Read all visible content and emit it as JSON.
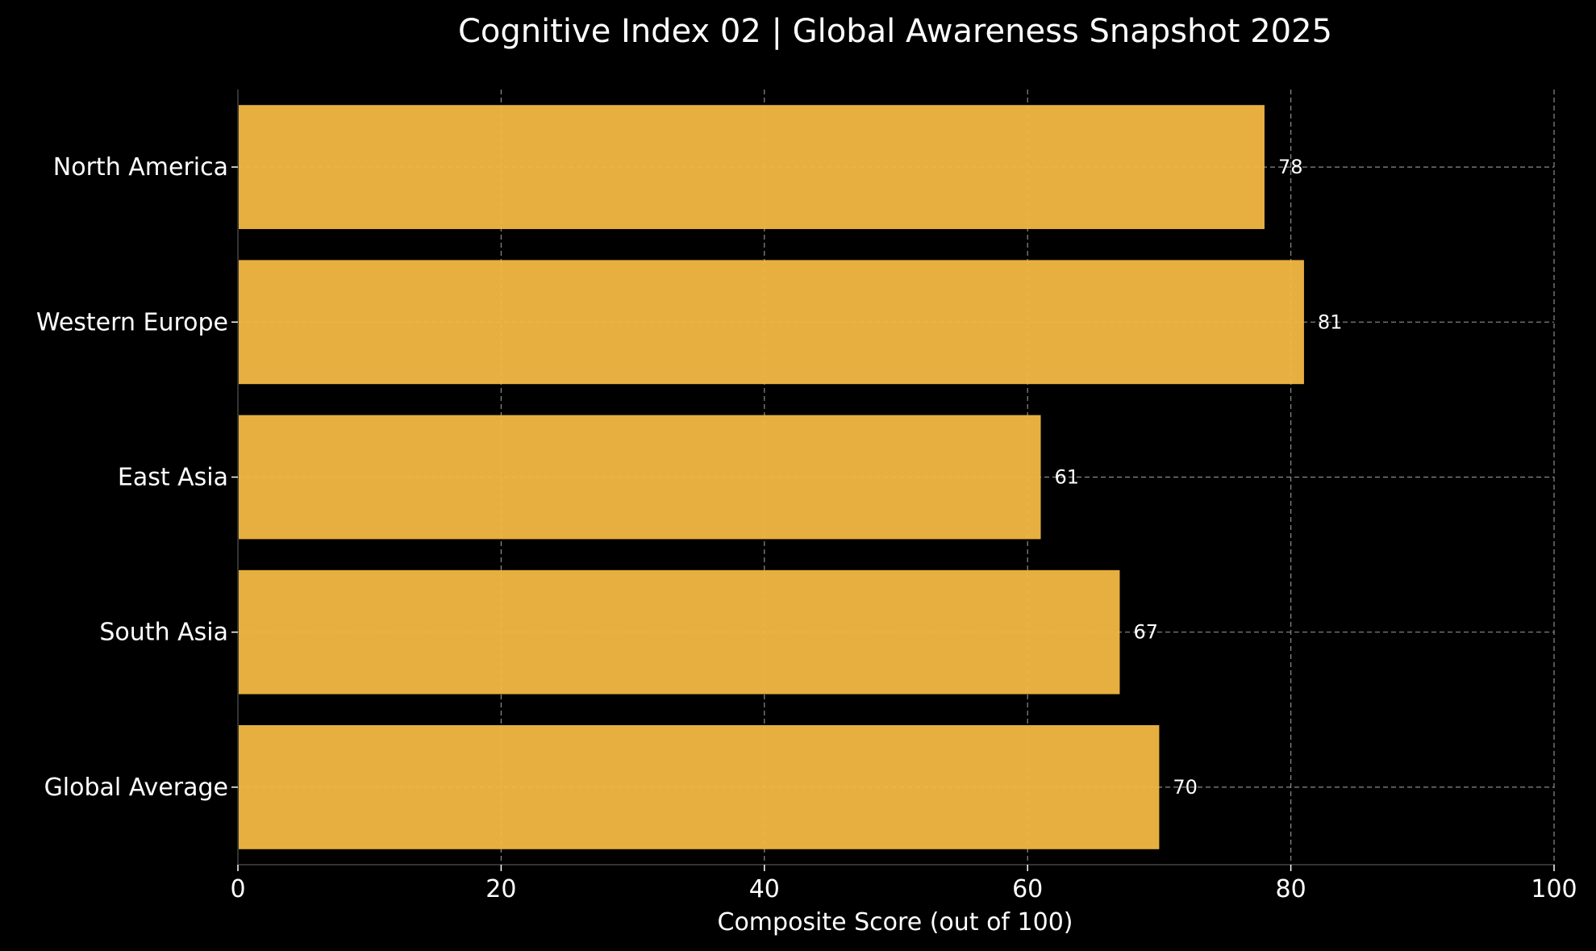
{
  "chart_data": {
    "type": "bar",
    "orientation": "horizontal",
    "title": "Cognitive Index 02 | Global Awareness Snapshot 2025",
    "xlabel": "Composite Score (out of 100)",
    "ylabel": "",
    "categories": [
      "North America",
      "Western Europe",
      "East Asia",
      "South Asia",
      "Global Average"
    ],
    "values": [
      78,
      81,
      61,
      67,
      70
    ],
    "data_labels": [
      "78",
      "81",
      "61",
      "67",
      "70"
    ],
    "xlim": [
      0,
      100
    ],
    "xticks": [
      0,
      20,
      40,
      60,
      80,
      100
    ],
    "xtick_labels": [
      "0",
      "20",
      "40",
      "60",
      "80",
      "100"
    ],
    "grid": true,
    "colors": {
      "background": "#000000",
      "bar": "#f2b843",
      "text": "#ffffff",
      "grid": "#8c8c8c",
      "axis": "#333333"
    }
  }
}
